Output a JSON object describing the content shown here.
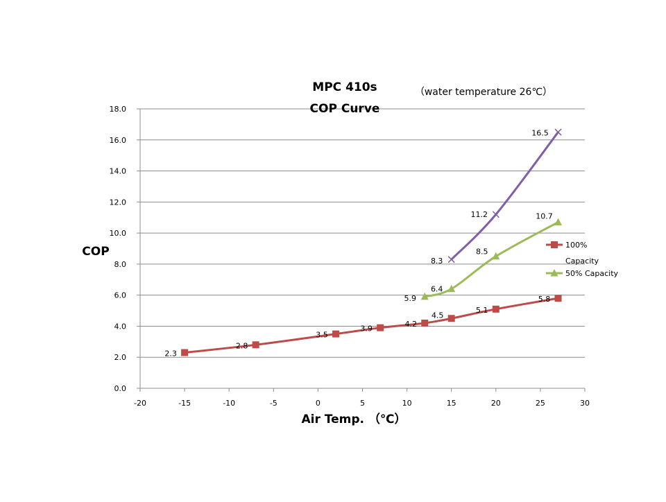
{
  "chart_data": {
    "type": "line",
    "title": "MPC 410s",
    "title_line2": "COP Curve",
    "subtitle": "（water  temperature 26℃）",
    "xlabel": "Air Temp.  （℃）",
    "ylabel": "COP",
    "xlim": [
      -20,
      30
    ],
    "ylim": [
      0,
      18
    ],
    "x_ticks": [
      -20,
      -15,
      -10,
      -5,
      0,
      5,
      10,
      15,
      20,
      25,
      30
    ],
    "y_ticks": [
      0,
      2,
      4,
      6,
      8,
      10,
      12,
      14,
      16,
      18
    ],
    "y_tick_labels": [
      "0.0",
      "2.0",
      "4.0",
      "6.0",
      "8.0",
      "10.0",
      "12.0",
      "14.0",
      "16.0",
      "18.0"
    ],
    "x_tick_labels": [
      "-20",
      "-15",
      "-10",
      "-5",
      "0",
      "5",
      "10",
      "15",
      "20",
      "25",
      "30"
    ],
    "grid": "horizontal",
    "legend_position": "right",
    "series": [
      {
        "name": "100% Capacity",
        "legend_lines": [
          "100%",
          "Capacity"
        ],
        "color": "#be4b48",
        "marker": "square",
        "x": [
          -15,
          -7,
          2,
          7,
          12,
          15,
          20,
          27
        ],
        "y": [
          2.3,
          2.8,
          3.5,
          3.9,
          4.2,
          4.5,
          5.1,
          5.8
        ],
        "labels": [
          "2.3",
          "2.8",
          "3.5",
          "3.9",
          "4.2",
          "4.5",
          "5.1",
          "5.8"
        ]
      },
      {
        "name": "50% Capacity",
        "legend_lines": [
          "50% Capacity"
        ],
        "color": "#9bbb59",
        "marker": "triangle",
        "x": [
          12,
          15,
          20,
          27
        ],
        "y": [
          5.9,
          6.4,
          8.5,
          10.7
        ],
        "labels": [
          "5.9",
          "6.4",
          "8.5",
          "10.7"
        ]
      },
      {
        "name": "",
        "color": "#7f5fa8",
        "marker": "x",
        "x": [
          15,
          20,
          27
        ],
        "y": [
          8.3,
          11.2,
          16.5
        ],
        "labels": [
          "8.3",
          "11.2",
          "16.5"
        ]
      }
    ]
  }
}
